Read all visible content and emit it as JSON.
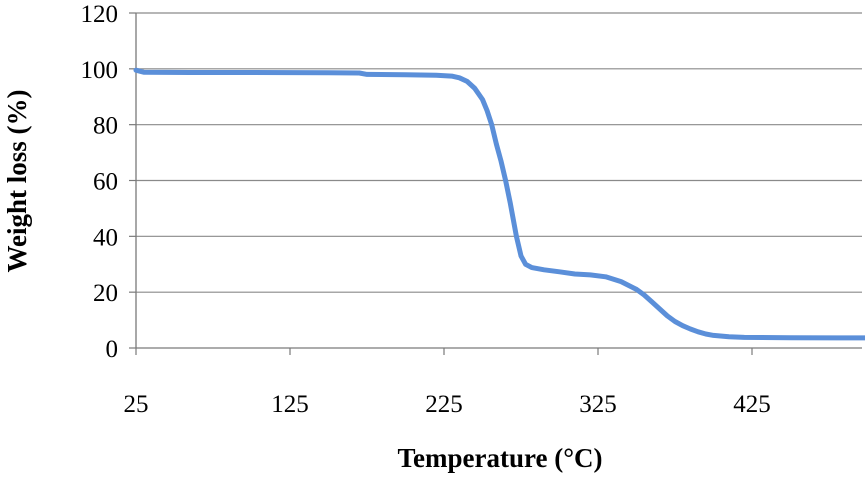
{
  "chart_data": {
    "type": "line",
    "title": "",
    "xlabel": "Temperature (°C)",
    "ylabel": "Weight loss (%)",
    "xlim": [
      25,
      500
    ],
    "ylim": [
      0,
      120
    ],
    "x_ticks": [
      25,
      125,
      225,
      325,
      425
    ],
    "y_ticks": [
      0,
      20,
      40,
      60,
      80,
      100,
      120
    ],
    "grid": "horizontal",
    "legend": "none",
    "series": [
      {
        "color": "#5B8FD9",
        "points": [
          [
            25,
            99.5
          ],
          [
            30,
            98.8
          ],
          [
            60,
            98.7
          ],
          [
            100,
            98.7
          ],
          [
            150,
            98.6
          ],
          [
            170,
            98.5
          ],
          [
            175,
            98.0
          ],
          [
            200,
            97.9
          ],
          [
            220,
            97.7
          ],
          [
            230,
            97.4
          ],
          [
            235,
            96.8
          ],
          [
            240,
            95.5
          ],
          [
            245,
            93.0
          ],
          [
            250,
            89.0
          ],
          [
            253,
            85.0
          ],
          [
            256,
            80.0
          ],
          [
            259,
            73.0
          ],
          [
            262,
            67.0
          ],
          [
            265,
            60.0
          ],
          [
            268,
            52.0
          ],
          [
            270,
            46.0
          ],
          [
            272,
            40.0
          ],
          [
            275,
            33.0
          ],
          [
            278,
            30.0
          ],
          [
            282,
            28.8
          ],
          [
            290,
            28.0
          ],
          [
            300,
            27.3
          ],
          [
            310,
            26.5
          ],
          [
            320,
            26.2
          ],
          [
            330,
            25.5
          ],
          [
            340,
            23.8
          ],
          [
            350,
            21.0
          ],
          [
            355,
            19.0
          ],
          [
            360,
            16.5
          ],
          [
            365,
            14.0
          ],
          [
            370,
            11.5
          ],
          [
            375,
            9.5
          ],
          [
            380,
            8.0
          ],
          [
            385,
            6.8
          ],
          [
            390,
            5.8
          ],
          [
            395,
            5.0
          ],
          [
            400,
            4.5
          ],
          [
            410,
            4.0
          ],
          [
            420,
            3.8
          ],
          [
            450,
            3.7
          ],
          [
            480,
            3.6
          ],
          [
            500,
            3.6
          ]
        ]
      }
    ]
  }
}
